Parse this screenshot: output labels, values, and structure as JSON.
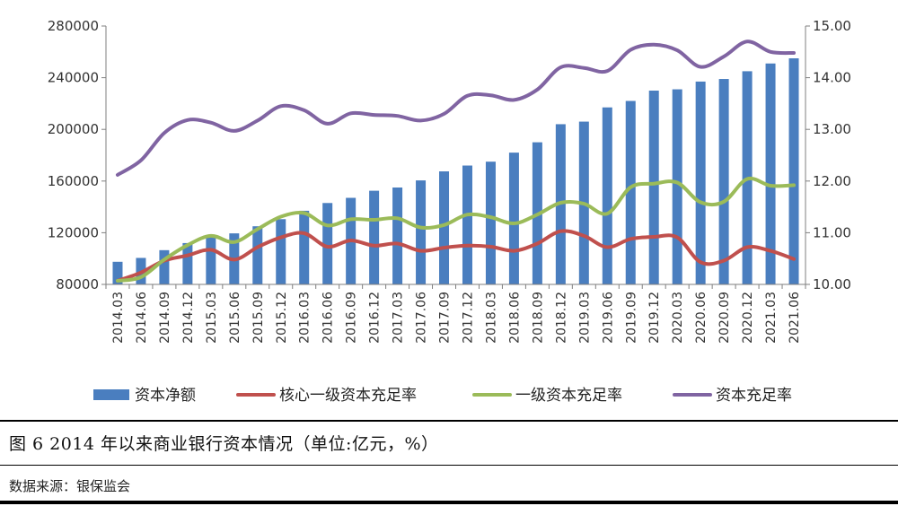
{
  "chart_data": {
    "type": "bar+line",
    "categories": [
      "2014.03",
      "2014.06",
      "2014.09",
      "2014.12",
      "2015.03",
      "2015.06",
      "2015.09",
      "2015.12",
      "2016.03",
      "2016.06",
      "2016.09",
      "2016.12",
      "2017.03",
      "2017.06",
      "2017.09",
      "2017.12",
      "2018.03",
      "2018.06",
      "2018.09",
      "2018.12",
      "2019.03",
      "2019.06",
      "2019.09",
      "2019.12",
      "2020.03",
      "2020.06",
      "2020.09",
      "2020.12",
      "2021.03",
      "2021.06"
    ],
    "y_left": {
      "ylim": [
        80000,
        280000
      ],
      "ticks": [
        "80000",
        "120000",
        "160000",
        "200000",
        "240000",
        "280000"
      ]
    },
    "y_right": {
      "ylim": [
        10,
        15
      ],
      "ticks": [
        "10.00",
        "11.00",
        "12.00",
        "13.00",
        "14.00",
        "15.00"
      ]
    },
    "series": [
      {
        "name": "资本净额",
        "kind": "bar",
        "axis": "left",
        "color": "#4a7ebf",
        "values": [
          97500,
          100500,
          106500,
          112000,
          117000,
          119500,
          125000,
          130500,
          137000,
          143000,
          147000,
          152500,
          155000,
          160500,
          167500,
          172000,
          175000,
          182000,
          190000,
          204000,
          206000,
          217000,
          222000,
          230000,
          231000,
          237000,
          239000,
          245000,
          251000,
          255000
        ]
      },
      {
        "name": "核心一级资本充足率",
        "kind": "line",
        "axis": "right",
        "color": "#c0504d",
        "values": [
          10.07,
          10.23,
          10.46,
          10.56,
          10.67,
          10.48,
          10.72,
          10.91,
          10.99,
          10.73,
          10.85,
          10.75,
          10.79,
          10.65,
          10.71,
          10.75,
          10.73,
          10.65,
          10.79,
          11.03,
          10.94,
          10.72,
          10.88,
          10.92,
          10.91,
          10.43,
          10.46,
          10.72,
          10.65,
          10.49
        ]
      },
      {
        "name": "一级资本充足率",
        "kind": "line",
        "axis": "right",
        "color": "#9bbb59",
        "values": [
          10.07,
          10.14,
          10.48,
          10.76,
          10.94,
          10.82,
          11.07,
          11.31,
          11.38,
          11.14,
          11.26,
          11.25,
          11.28,
          11.1,
          11.15,
          11.35,
          11.3,
          11.18,
          11.35,
          11.58,
          11.56,
          11.37,
          11.88,
          11.95,
          11.97,
          11.59,
          11.6,
          12.04,
          11.91,
          11.92
        ]
      },
      {
        "name": "资本充足率",
        "kind": "line",
        "axis": "right",
        "color": "#8064a2",
        "values": [
          12.12,
          12.4,
          12.93,
          13.18,
          13.13,
          12.97,
          13.17,
          13.45,
          13.37,
          13.11,
          13.31,
          13.28,
          13.26,
          13.17,
          13.3,
          13.65,
          13.66,
          13.57,
          13.77,
          14.2,
          14.19,
          14.13,
          14.54,
          14.64,
          14.53,
          14.21,
          14.41,
          14.7,
          14.5,
          14.48
        ]
      }
    ],
    "legend_position": "bottom",
    "grid": false
  },
  "caption": "图 6   2014 年以来商业银行资本情况（单位:亿元，%）",
  "source": "数据来源：银保监会"
}
